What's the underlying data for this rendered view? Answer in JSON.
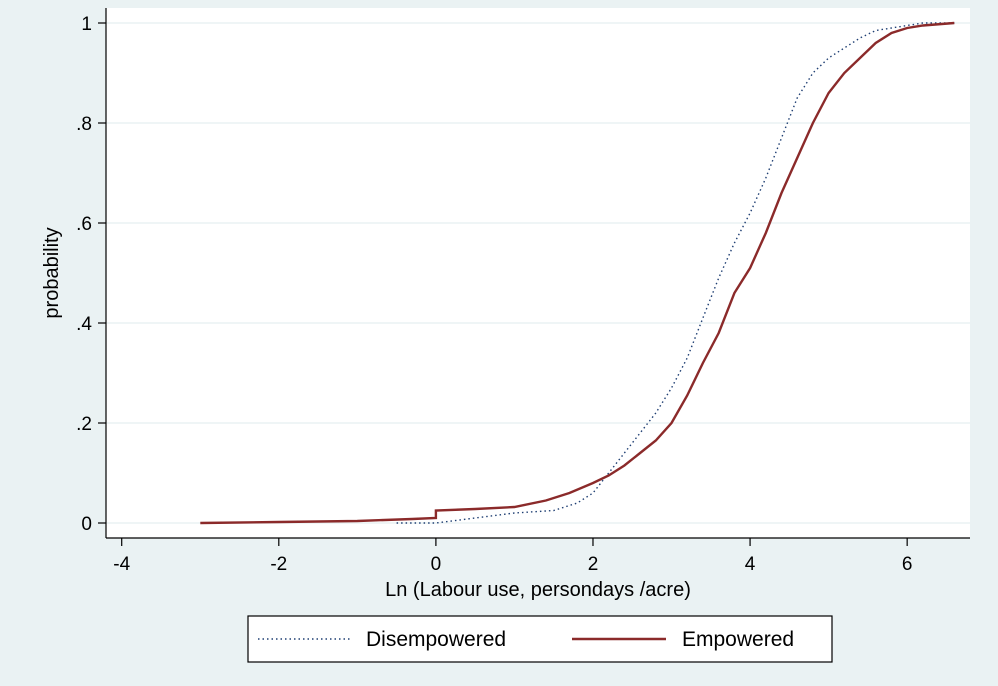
{
  "chart_data": {
    "type": "line",
    "xlabel": "Ln (Labour use, persondays /acre)",
    "ylabel": "probability",
    "xlim": [
      -4.2,
      6.8
    ],
    "ylim": [
      -0.03,
      1.03
    ],
    "xticks": [
      -4,
      -2,
      0,
      2,
      4,
      6
    ],
    "xtick_labels": [
      "-4",
      "-2",
      "0",
      "2",
      "4",
      "6"
    ],
    "yticks": [
      0,
      0.2,
      0.4,
      0.6,
      0.8,
      1
    ],
    "ytick_labels": [
      "0",
      ".2",
      ".4",
      ".6",
      ".8",
      "1"
    ],
    "grid": true,
    "legend_position": "bottom",
    "series": [
      {
        "name": "Disempowered",
        "color": "#1f3f73",
        "style": "dotted",
        "x": [
          -0.5,
          0.0,
          0.5,
          1.0,
          1.5,
          1.8,
          2.0,
          2.2,
          2.4,
          2.6,
          2.8,
          3.0,
          3.2,
          3.4,
          3.6,
          3.8,
          4.0,
          4.2,
          4.4,
          4.6,
          4.8,
          5.0,
          5.2,
          5.4,
          5.6,
          5.8,
          6.0,
          6.2,
          6.6
        ],
        "y": [
          0.0,
          0.0,
          0.01,
          0.02,
          0.025,
          0.04,
          0.06,
          0.1,
          0.14,
          0.18,
          0.22,
          0.27,
          0.33,
          0.41,
          0.49,
          0.56,
          0.62,
          0.69,
          0.77,
          0.85,
          0.9,
          0.93,
          0.95,
          0.97,
          0.985,
          0.99,
          0.995,
          1.0,
          1.0
        ]
      },
      {
        "name": "Empowered",
        "color": "#8b2a2a",
        "style": "solid",
        "x": [
          -3.0,
          -2.0,
          -1.0,
          -0.3,
          0.0,
          0.0,
          0.5,
          1.0,
          1.4,
          1.7,
          2.0,
          2.2,
          2.4,
          2.6,
          2.8,
          3.0,
          3.2,
          3.4,
          3.6,
          3.8,
          4.0,
          4.2,
          4.4,
          4.6,
          4.8,
          5.0,
          5.2,
          5.4,
          5.6,
          5.8,
          6.0,
          6.2,
          6.6
        ],
        "y": [
          0.0,
          0.002,
          0.004,
          0.008,
          0.01,
          0.025,
          0.028,
          0.032,
          0.045,
          0.06,
          0.08,
          0.095,
          0.115,
          0.14,
          0.165,
          0.2,
          0.255,
          0.32,
          0.38,
          0.46,
          0.51,
          0.58,
          0.66,
          0.73,
          0.8,
          0.86,
          0.9,
          0.93,
          0.96,
          0.98,
          0.99,
          0.995,
          1.0
        ]
      }
    ]
  }
}
